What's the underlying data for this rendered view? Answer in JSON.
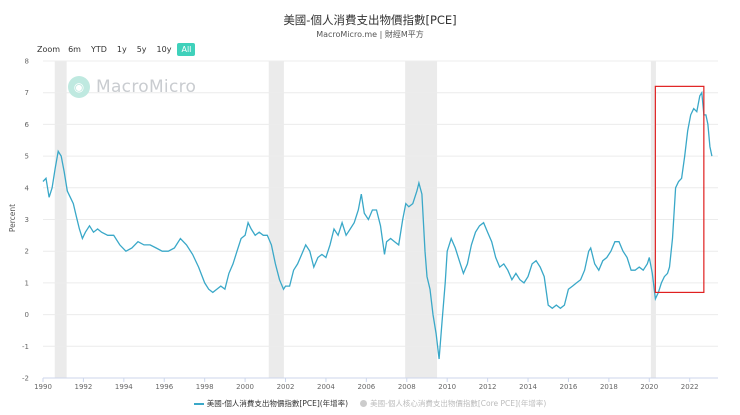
{
  "header": {
    "title": "美國-個人消費支出物價指數[PCE]",
    "subtitle": "MacroMicro.me | 財經M平方"
  },
  "range_selector": {
    "zoom_label": "Zoom",
    "buttons": [
      "6m",
      "YTD",
      "1y",
      "5y",
      "10y",
      "All"
    ],
    "active": "All"
  },
  "watermark": {
    "text": "MacroMicro",
    "logo_icon": "macromicro-logo-icon"
  },
  "colors": {
    "series": "#3aa8c8",
    "series_inactive": "#cccccc",
    "recession": "#ebebeb",
    "highlight_box": "#e02020",
    "grid": "#ececec",
    "accent": "#3fd1bb"
  },
  "legend": [
    {
      "label": "美國-個人消費支出物價指數[PCE](年增率)",
      "active": true
    },
    {
      "label": "美國-個人核心消費支出物價指數[Core PCE](年增率)",
      "active": false
    }
  ],
  "chart_data": {
    "type": "line",
    "title": "美國-個人消費支出物價指數[PCE]",
    "ylabel": "Percent",
    "xlabel": "",
    "xlim": [
      1990,
      2023.4
    ],
    "ylim": [
      -2,
      8
    ],
    "x_ticks": [
      "1990",
      "1992",
      "1994",
      "1996",
      "1998",
      "2000",
      "2002",
      "2004",
      "2006",
      "2008",
      "2010",
      "2012",
      "2014",
      "2016",
      "2018",
      "2020",
      "2022"
    ],
    "y_ticks": [
      "-2",
      "-1",
      "0",
      "1",
      "2",
      "3",
      "4",
      "5",
      "6",
      "7",
      "8"
    ],
    "recessions": [
      [
        1990.58,
        1991.17
      ],
      [
        2001.17,
        2001.92
      ],
      [
        2007.92,
        2009.5
      ],
      [
        2020.08,
        2020.33
      ]
    ],
    "highlight_range": {
      "x": [
        2020.3,
        2022.7
      ],
      "y": [
        0.7,
        7.2
      ]
    },
    "series": [
      {
        "name": "美國-個人消費支出物價指數[PCE](年增率)",
        "points": [
          [
            1990.0,
            4.2
          ],
          [
            1990.15,
            4.3
          ],
          [
            1990.3,
            3.7
          ],
          [
            1990.45,
            4.0
          ],
          [
            1990.6,
            4.6
          ],
          [
            1990.75,
            5.15
          ],
          [
            1990.9,
            5.0
          ],
          [
            1991.05,
            4.5
          ],
          [
            1991.2,
            3.9
          ],
          [
            1991.35,
            3.7
          ],
          [
            1991.5,
            3.5
          ],
          [
            1991.65,
            3.1
          ],
          [
            1991.8,
            2.7
          ],
          [
            1991.95,
            2.4
          ],
          [
            1992.1,
            2.6
          ],
          [
            1992.3,
            2.8
          ],
          [
            1992.5,
            2.6
          ],
          [
            1992.7,
            2.7
          ],
          [
            1992.9,
            2.6
          ],
          [
            1993.2,
            2.5
          ],
          [
            1993.5,
            2.5
          ],
          [
            1993.8,
            2.2
          ],
          [
            1994.1,
            2.0
          ],
          [
            1994.4,
            2.1
          ],
          [
            1994.7,
            2.3
          ],
          [
            1995.0,
            2.2
          ],
          [
            1995.3,
            2.2
          ],
          [
            1995.6,
            2.1
          ],
          [
            1995.9,
            2.0
          ],
          [
            1996.2,
            2.0
          ],
          [
            1996.5,
            2.1
          ],
          [
            1996.8,
            2.4
          ],
          [
            1997.1,
            2.2
          ],
          [
            1997.4,
            1.9
          ],
          [
            1997.7,
            1.5
          ],
          [
            1998.0,
            1.0
          ],
          [
            1998.2,
            0.8
          ],
          [
            1998.4,
            0.7
          ],
          [
            1998.6,
            0.8
          ],
          [
            1998.8,
            0.9
          ],
          [
            1999.0,
            0.8
          ],
          [
            1999.2,
            1.3
          ],
          [
            1999.4,
            1.6
          ],
          [
            1999.6,
            2.0
          ],
          [
            1999.8,
            2.4
          ],
          [
            2000.0,
            2.5
          ],
          [
            2000.15,
            2.9
          ],
          [
            2000.3,
            2.7
          ],
          [
            2000.5,
            2.5
          ],
          [
            2000.7,
            2.6
          ],
          [
            2000.9,
            2.5
          ],
          [
            2001.1,
            2.5
          ],
          [
            2001.3,
            2.2
          ],
          [
            2001.5,
            1.6
          ],
          [
            2001.7,
            1.1
          ],
          [
            2001.9,
            0.8
          ],
          [
            2002.0,
            0.9
          ],
          [
            2002.2,
            0.9
          ],
          [
            2002.4,
            1.4
          ],
          [
            2002.6,
            1.6
          ],
          [
            2002.8,
            1.9
          ],
          [
            2003.0,
            2.2
          ],
          [
            2003.2,
            2.0
          ],
          [
            2003.4,
            1.5
          ],
          [
            2003.6,
            1.8
          ],
          [
            2003.8,
            1.9
          ],
          [
            2004.0,
            1.8
          ],
          [
            2004.2,
            2.2
          ],
          [
            2004.4,
            2.7
          ],
          [
            2004.6,
            2.5
          ],
          [
            2004.8,
            2.9
          ],
          [
            2005.0,
            2.5
          ],
          [
            2005.2,
            2.7
          ],
          [
            2005.4,
            2.9
          ],
          [
            2005.6,
            3.3
          ],
          [
            2005.75,
            3.8
          ],
          [
            2005.9,
            3.2
          ],
          [
            2006.1,
            3.0
          ],
          [
            2006.3,
            3.3
          ],
          [
            2006.5,
            3.3
          ],
          [
            2006.7,
            2.8
          ],
          [
            2006.9,
            1.9
          ],
          [
            2007.0,
            2.3
          ],
          [
            2007.2,
            2.4
          ],
          [
            2007.4,
            2.3
          ],
          [
            2007.6,
            2.2
          ],
          [
            2007.8,
            3.0
          ],
          [
            2007.95,
            3.5
          ],
          [
            2008.1,
            3.4
          ],
          [
            2008.3,
            3.5
          ],
          [
            2008.5,
            3.9
          ],
          [
            2008.6,
            4.15
          ],
          [
            2008.75,
            3.8
          ],
          [
            2008.9,
            2.0
          ],
          [
            2009.0,
            1.2
          ],
          [
            2009.15,
            0.8
          ],
          [
            2009.3,
            0.0
          ],
          [
            2009.45,
            -0.6
          ],
          [
            2009.6,
            -1.4
          ],
          [
            2009.75,
            -0.2
          ],
          [
            2009.9,
            1.0
          ],
          [
            2010.0,
            2.0
          ],
          [
            2010.2,
            2.4
          ],
          [
            2010.4,
            2.1
          ],
          [
            2010.6,
            1.7
          ],
          [
            2010.8,
            1.3
          ],
          [
            2011.0,
            1.6
          ],
          [
            2011.2,
            2.2
          ],
          [
            2011.4,
            2.6
          ],
          [
            2011.6,
            2.8
          ],
          [
            2011.8,
            2.9
          ],
          [
            2012.0,
            2.6
          ],
          [
            2012.2,
            2.3
          ],
          [
            2012.4,
            1.8
          ],
          [
            2012.6,
            1.5
          ],
          [
            2012.8,
            1.6
          ],
          [
            2013.0,
            1.4
          ],
          [
            2013.2,
            1.1
          ],
          [
            2013.4,
            1.3
          ],
          [
            2013.6,
            1.1
          ],
          [
            2013.8,
            1.0
          ],
          [
            2014.0,
            1.2
          ],
          [
            2014.2,
            1.6
          ],
          [
            2014.4,
            1.7
          ],
          [
            2014.6,
            1.5
          ],
          [
            2014.8,
            1.2
          ],
          [
            2015.0,
            0.3
          ],
          [
            2015.2,
            0.2
          ],
          [
            2015.4,
            0.3
          ],
          [
            2015.6,
            0.2
          ],
          [
            2015.8,
            0.3
          ],
          [
            2016.0,
            0.8
          ],
          [
            2016.2,
            0.9
          ],
          [
            2016.4,
            1.0
          ],
          [
            2016.6,
            1.1
          ],
          [
            2016.8,
            1.4
          ],
          [
            2017.0,
            2.0
          ],
          [
            2017.1,
            2.1
          ],
          [
            2017.3,
            1.6
          ],
          [
            2017.5,
            1.4
          ],
          [
            2017.7,
            1.7
          ],
          [
            2017.9,
            1.8
          ],
          [
            2018.1,
            2.0
          ],
          [
            2018.3,
            2.3
          ],
          [
            2018.5,
            2.3
          ],
          [
            2018.7,
            2.0
          ],
          [
            2018.9,
            1.8
          ],
          [
            2019.1,
            1.4
          ],
          [
            2019.3,
            1.4
          ],
          [
            2019.5,
            1.5
          ],
          [
            2019.7,
            1.4
          ],
          [
            2019.9,
            1.6
          ],
          [
            2020.0,
            1.8
          ],
          [
            2020.15,
            1.3
          ],
          [
            2020.3,
            0.5
          ],
          [
            2020.45,
            0.7
          ],
          [
            2020.6,
            1.0
          ],
          [
            2020.75,
            1.2
          ],
          [
            2020.9,
            1.3
          ],
          [
            2021.0,
            1.5
          ],
          [
            2021.15,
            2.4
          ],
          [
            2021.3,
            4.0
          ],
          [
            2021.45,
            4.2
          ],
          [
            2021.6,
            4.3
          ],
          [
            2021.75,
            5.0
          ],
          [
            2021.9,
            5.8
          ],
          [
            2022.05,
            6.3
          ],
          [
            2022.2,
            6.5
          ],
          [
            2022.35,
            6.4
          ],
          [
            2022.5,
            6.9
          ],
          [
            2022.6,
            7.0
          ],
          [
            2022.7,
            6.3
          ],
          [
            2022.8,
            6.3
          ],
          [
            2022.9,
            6.0
          ],
          [
            2023.0,
            5.3
          ],
          [
            2023.1,
            5.0
          ]
        ]
      }
    ]
  }
}
